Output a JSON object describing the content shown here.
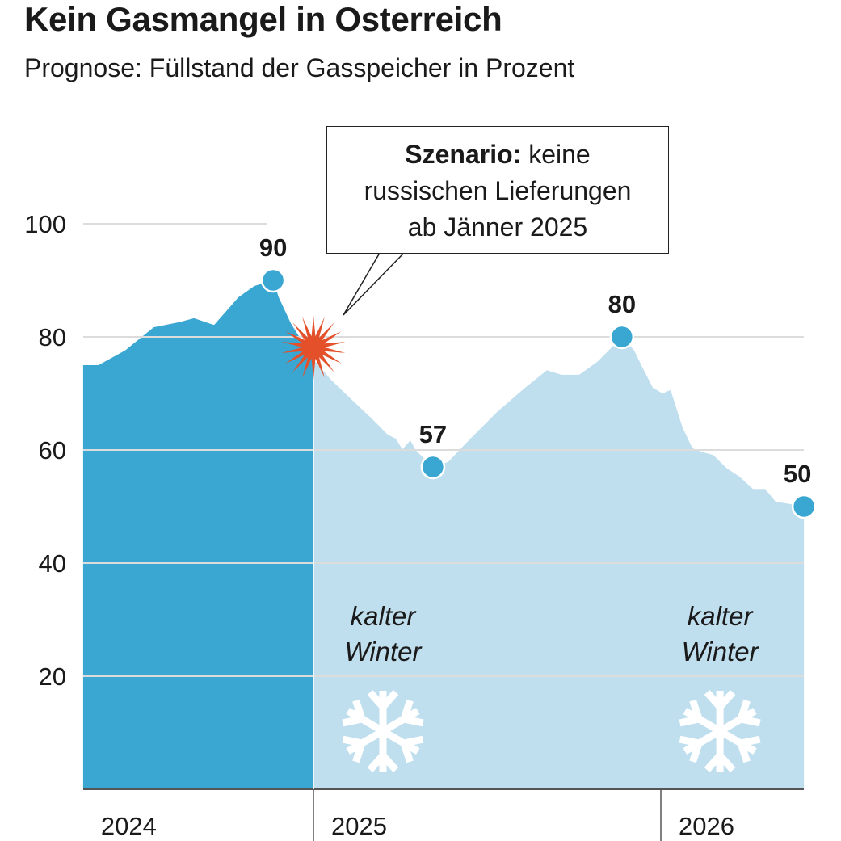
{
  "title": "Kein Gasmangel in Osterreich",
  "subtitle": "Prognose: Füllstand der Gasspeicher in Prozent",
  "colors": {
    "historical": "#3aa6d2",
    "forecast": "#c0dfee",
    "burst": "#e4502a",
    "marker": "#3aa6d2",
    "grid": "#dcdcdc"
  },
  "callout": {
    "bold": "Szenario:",
    "line1_rest": " keine",
    "line2": "russischen Lieferungen",
    "line3": "ab Jänner 2025"
  },
  "annotations": [
    {
      "line1": "kalter",
      "line2": "Winter",
      "icon": "snowflake-icon",
      "year": 2025.2
    },
    {
      "line1": "kalter",
      "line2": "Winter",
      "icon": "snowflake-icon",
      "year": 2026.17
    }
  ],
  "chart_data": {
    "type": "area",
    "title": "Kein Gasmangel in Osterreich",
    "subtitle": "Prognose: Füllstand der Gasspeicher in Prozent",
    "xlabel": "",
    "ylabel": "",
    "ylim": [
      0,
      100
    ],
    "yticks": [
      20,
      40,
      60,
      80,
      100
    ],
    "x_year_labels": [
      {
        "label": "2024",
        "start": 2024.337
      },
      {
        "label": "2025",
        "start": 2025.0
      },
      {
        "label": "2026",
        "start": 2026.0
      }
    ],
    "xlim": [
      2024.337,
      2026.412
    ],
    "grid": true,
    "split_at": 2025.0,
    "series": [
      {
        "x": [
          2024.337,
          2024.381,
          2024.458,
          2024.54,
          2024.614,
          2024.656,
          2024.714,
          2024.784,
          2024.83,
          2024.884,
          2024.9,
          2024.935,
          2025.0,
          2025.051,
          2025.098,
          2025.167,
          2025.214,
          2025.237,
          2025.256,
          2025.279,
          2025.295,
          2025.344,
          2025.388,
          2025.447,
          2025.528,
          2025.609,
          2025.672,
          2025.714,
          2025.765,
          2025.819,
          2025.888,
          2025.923,
          2025.947,
          2025.977,
          2026.005,
          2026.028,
          2026.063,
          2026.091,
          2026.121,
          2026.151,
          2026.191,
          2026.226,
          2026.265,
          2026.3,
          2026.33,
          2026.412
        ],
        "y": [
          75,
          75,
          77.6,
          81.7,
          82.6,
          83.3,
          82.1,
          87,
          89,
          90,
          87,
          82.4,
          76,
          72.4,
          69.6,
          65.6,
          62.7,
          62,
          60.1,
          61.7,
          59.9,
          57,
          57.9,
          61.7,
          66.7,
          71,
          74.1,
          73.3,
          73.3,
          75.7,
          80,
          77.6,
          74.6,
          71,
          70,
          70.6,
          63.9,
          60.3,
          59.6,
          59.1,
          56.7,
          55.3,
          53.1,
          53.1,
          50.9,
          50
        ]
      }
    ],
    "markers": [
      {
        "x": 2024.884,
        "y": 90,
        "label": "90"
      },
      {
        "x": 2025.344,
        "y": 57,
        "label": "57"
      },
      {
        "x": 2025.888,
        "y": 80,
        "label": "80"
      },
      {
        "x": 2026.412,
        "y": 50,
        "label": "50"
      }
    ],
    "event": {
      "x": 2025.0,
      "y": 77.6,
      "icon": "burst-icon"
    }
  }
}
